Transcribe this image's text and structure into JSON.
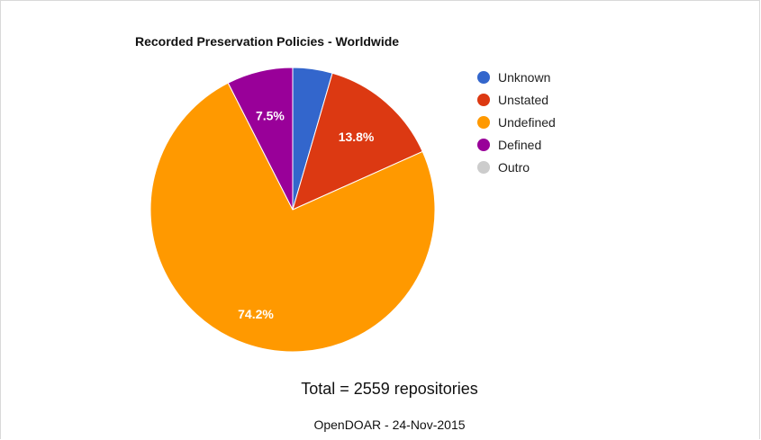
{
  "chart_data": {
    "type": "pie",
    "title": "Recorded Preservation Policies - Worldwide",
    "slices": [
      {
        "label": "Unknown",
        "value": 4.5,
        "color": "#3366cc",
        "display": ""
      },
      {
        "label": "Unstated",
        "value": 13.8,
        "color": "#dc3912",
        "display": "13.8%"
      },
      {
        "label": "Undefined",
        "value": 74.2,
        "color": "#ff9900",
        "display": "74.2%"
      },
      {
        "label": "Defined",
        "value": 7.5,
        "color": "#990099",
        "display": "7.5%"
      },
      {
        "label": "Outro",
        "value": 0.0,
        "color": "#cccccc",
        "display": ""
      }
    ],
    "legend_position": "right"
  },
  "footer": {
    "total": "Total = 2559 repositories",
    "source": "OpenDOAR - 24-Nov-2015"
  }
}
